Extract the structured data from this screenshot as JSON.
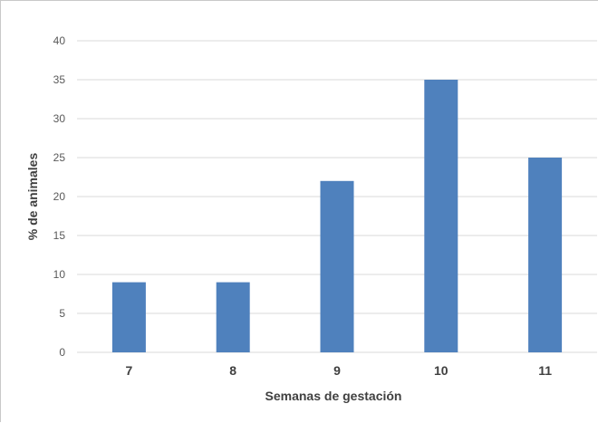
{
  "chart_data": {
    "type": "bar",
    "categories": [
      "7",
      "8",
      "9",
      "10",
      "11"
    ],
    "values": [
      9,
      9,
      22,
      35,
      25
    ],
    "xlabel": "Semanas de gestación",
    "ylabel": "% de animales",
    "ylim": [
      0,
      40
    ],
    "yticks": [
      0,
      5,
      10,
      15,
      20,
      25,
      30,
      35,
      40
    ],
    "grid": true,
    "bar_color": "#4f81bd",
    "grid_color": "#d9d9d9",
    "legend": "none"
  }
}
